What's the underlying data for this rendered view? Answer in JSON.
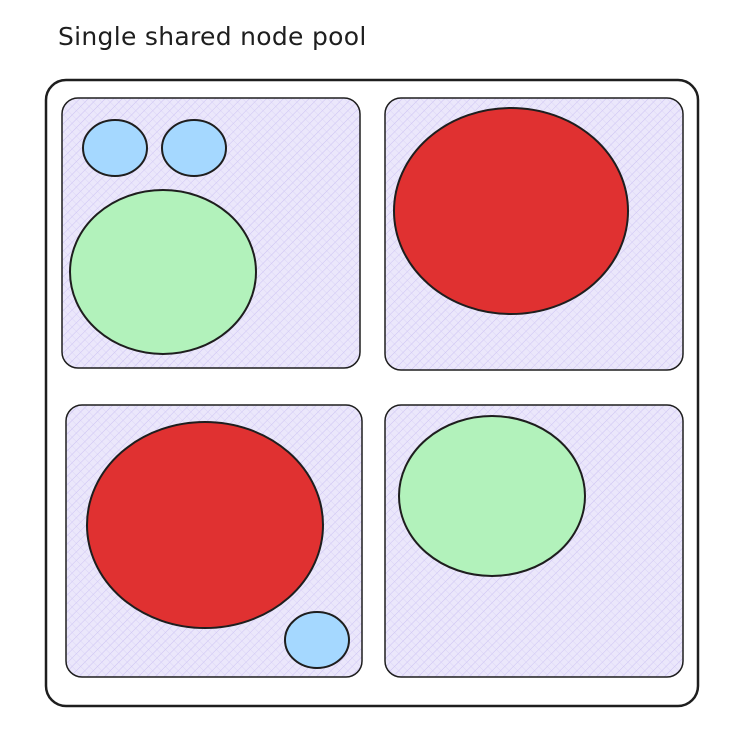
{
  "diagram": {
    "title": "Single shared node pool",
    "colors": {
      "stroke": "#1e1e1e",
      "node_fill": "#ebe7fb",
      "node_hatch": "#b9adf0",
      "pod_blue": "#a5d8ff",
      "pod_green": "#b2f2bb",
      "pod_red": "#e03131"
    },
    "pool": {
      "nodes": [
        {
          "id": "node-1",
          "pods": [
            "small-blue",
            "small-blue",
            "medium-green"
          ]
        },
        {
          "id": "node-2",
          "pods": [
            "large-red"
          ]
        },
        {
          "id": "node-3",
          "pods": [
            "large-red",
            "small-blue"
          ]
        },
        {
          "id": "node-4",
          "pods": [
            "medium-green"
          ]
        }
      ]
    }
  }
}
